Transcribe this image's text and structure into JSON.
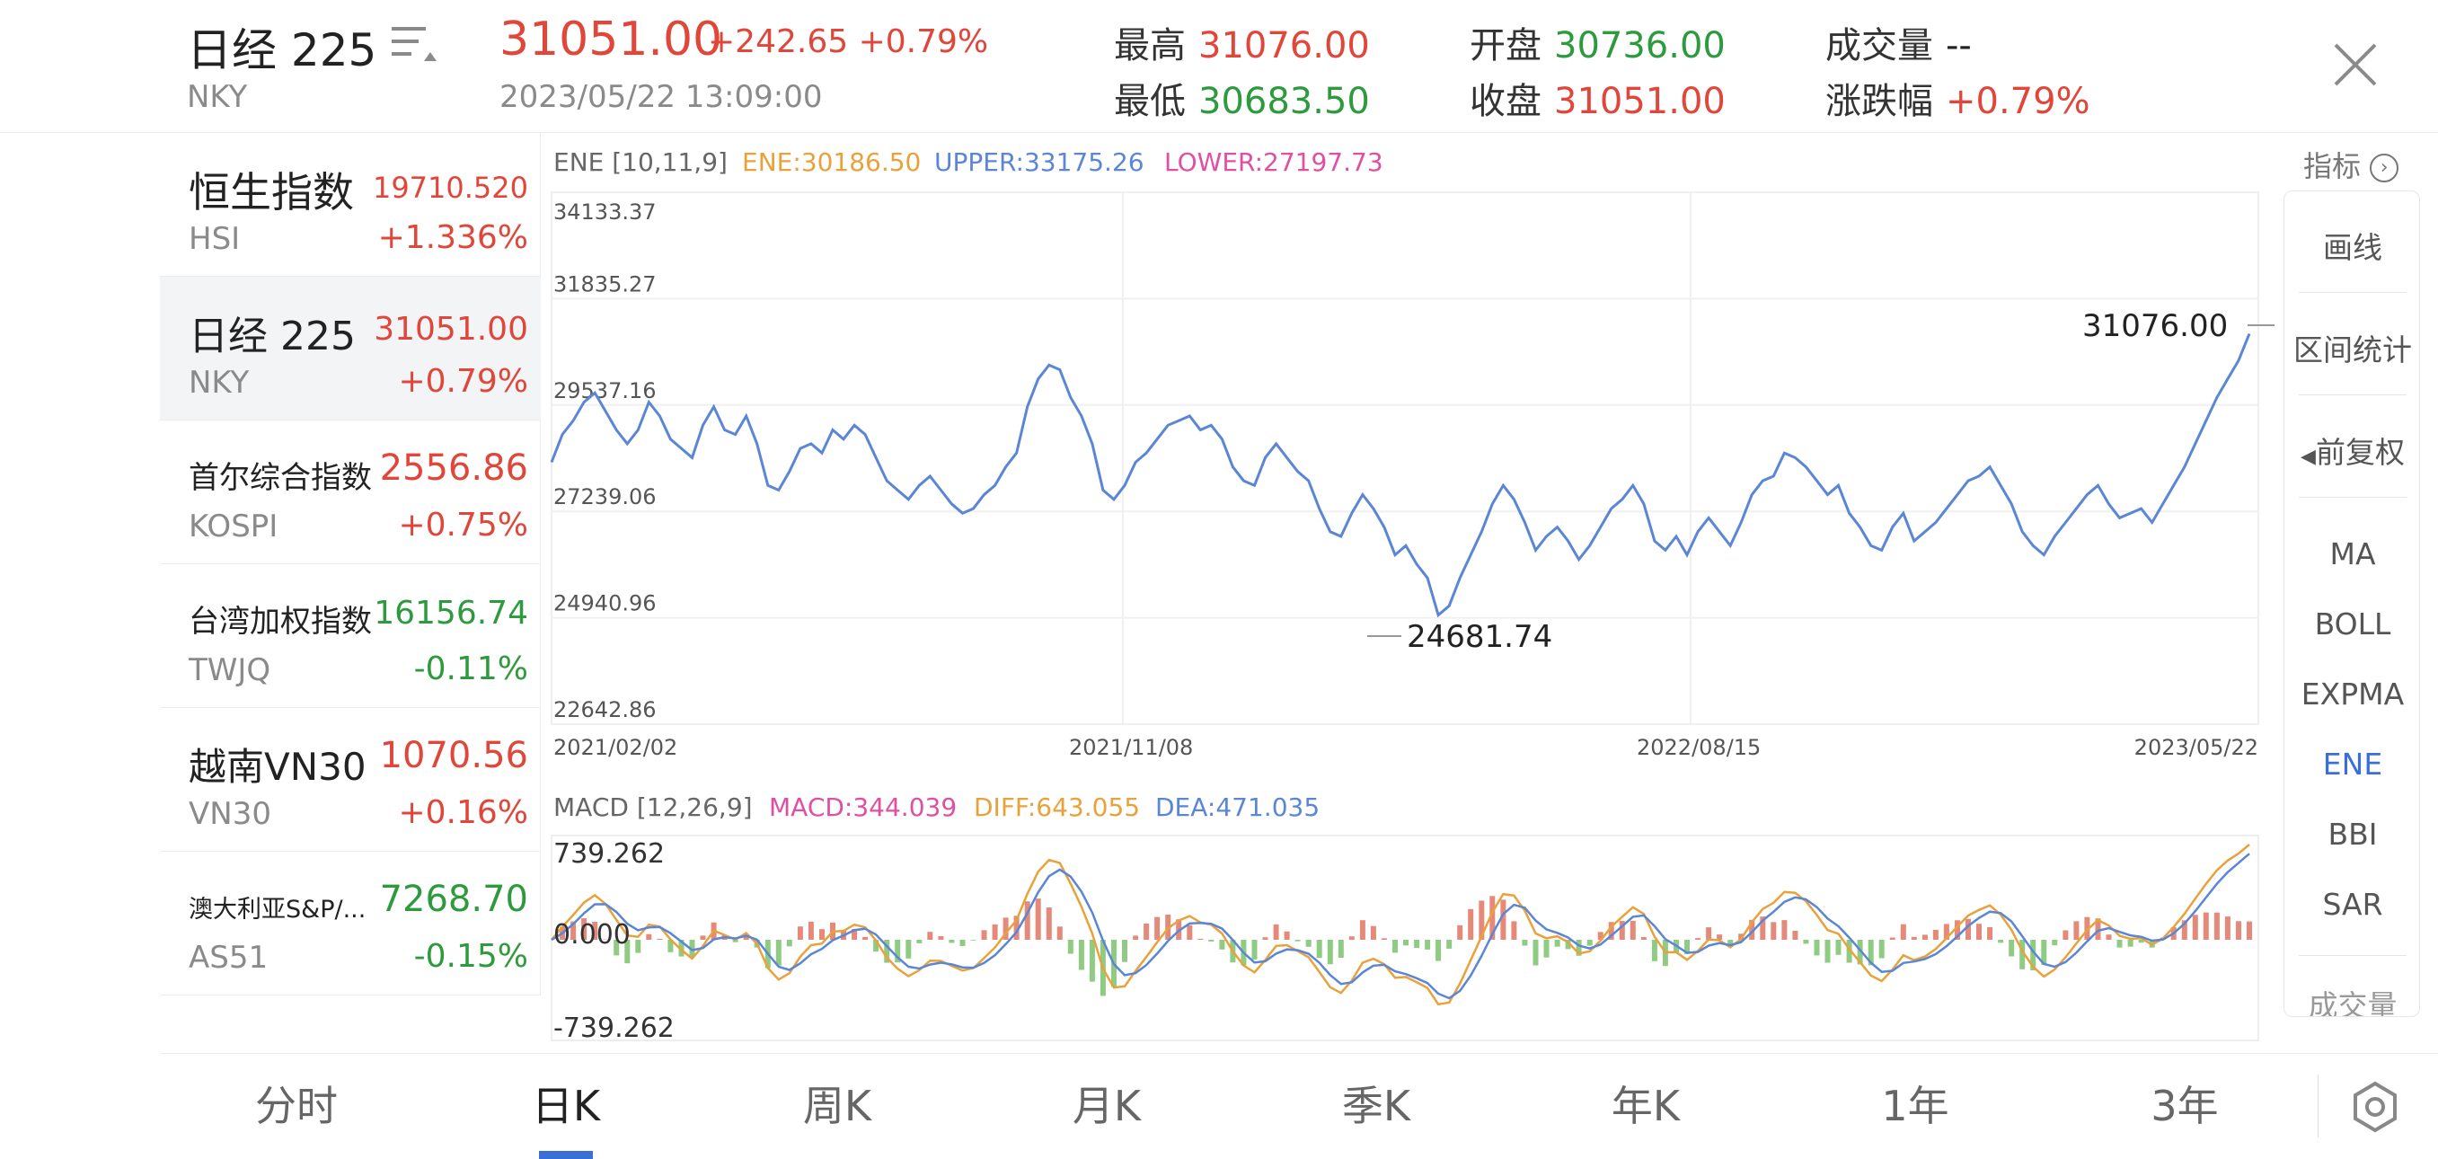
{
  "header": {
    "name": "日经 225",
    "code": "NKY",
    "price": "31051.00",
    "change": "+242.65 +0.79%",
    "datetime": "2023/05/22 13:09:00",
    "stats": [
      {
        "label": "最高",
        "value": "31076.00",
        "color": "red"
      },
      {
        "label": "最低",
        "value": "30683.50",
        "color": "green"
      },
      {
        "label": "开盘",
        "value": "30736.00",
        "color": "green"
      },
      {
        "label": "收盘",
        "value": "31051.00",
        "color": "red"
      },
      {
        "label": "成交量",
        "value": "--",
        "color": "dark"
      },
      {
        "label": "涨跌幅",
        "value": "+0.79%",
        "color": "red"
      }
    ]
  },
  "sidebar": {
    "items": [
      {
        "name": "恒生指数",
        "code": "HSI",
        "price": "19710.520",
        "pct": "+1.336%",
        "color": "red"
      },
      {
        "name": "日经 225",
        "code": "NKY",
        "price": "31051.00",
        "pct": "+0.79%",
        "color": "red"
      },
      {
        "name": "首尔综合指数",
        "code": "KOSPI",
        "price": "2556.86",
        "pct": "+0.75%",
        "color": "red"
      },
      {
        "name": "台湾加权指数",
        "code": "TWJQ",
        "price": "16156.74",
        "pct": "-0.11%",
        "color": "green"
      },
      {
        "name": "越南VN30",
        "code": "VN30",
        "price": "1070.56",
        "pct": "+0.16%",
        "color": "red"
      },
      {
        "name": "澳大利亚S&P/...",
        "code": "AS51",
        "price": "7268.70",
        "pct": "-0.15%",
        "color": "green"
      }
    ]
  },
  "chart": {
    "legend": {
      "title": "ENE [10,11,9]",
      "ene": "ENE:30186.50",
      "upper": "UPPER:33175.26",
      "lower": "LOWER:27197.73"
    },
    "max_label": "31076.00",
    "min_label": "24681.74",
    "macd_legend": {
      "title": "MACD [12,26,9]",
      "macd": "MACD:344.039",
      "diff": "DIFF:643.055",
      "dea": "DEA:471.035"
    }
  },
  "chart_data": {
    "type": "line",
    "y_ticks": [
      "34133.37",
      "31835.27",
      "29537.16",
      "27239.06",
      "24940.96",
      "22642.86"
    ],
    "x_ticks": [
      "2021/02/02",
      "2021/11/08",
      "2022/08/15",
      "2023/05/22"
    ],
    "ylim": [
      22642.86,
      34133.37
    ],
    "series": [
      {
        "values": [
          28300,
          28900,
          29200,
          29600,
          29800,
          29400,
          29000,
          28700,
          29000,
          29600,
          29300,
          28800,
          28600,
          28400,
          29100,
          29500,
          29000,
          28900,
          29300,
          28700,
          27800,
          27700,
          28100,
          28600,
          28700,
          28500,
          29000,
          28800,
          29100,
          28900,
          28400,
          27900,
          27700,
          27500,
          27800,
          28000,
          27700,
          27400,
          27200,
          27300,
          27600,
          27800,
          28200,
          28500,
          29500,
          30100,
          30400,
          30300,
          29700,
          29300,
          28700,
          27700,
          27500,
          27800,
          28300,
          28500,
          28800,
          29100,
          29200,
          29300,
          29000,
          29100,
          28800,
          28200,
          27900,
          27800,
          28400,
          28700,
          28400,
          28100,
          27900,
          27300,
          26800,
          26700,
          27200,
          27600,
          27300,
          26900,
          26300,
          26500,
          26100,
          25800,
          25000,
          25200,
          25800,
          26300,
          26800,
          27400,
          27800,
          27500,
          27000,
          26400,
          26700,
          26900,
          26600,
          26200,
          26500,
          26900,
          27300,
          27500,
          27800,
          27400,
          26600,
          26400,
          26700,
          26300,
          26800,
          27100,
          26800,
          26500,
          27000,
          27600,
          27900,
          28000,
          28500,
          28400,
          28200,
          27900,
          27600,
          27800,
          27200,
          26900,
          26500,
          26400,
          26900,
          27200,
          26600,
          26800,
          27000,
          27300,
          27600,
          27900,
          28000,
          28200,
          27800,
          27400,
          26800,
          26500,
          26300,
          26700,
          27000,
          27300,
          27600,
          27800,
          27400,
          27100,
          27200,
          27300,
          27000,
          27400,
          27800,
          28200,
          28700,
          29200,
          29700,
          30100,
          30500,
          31076
        ]
      }
    ],
    "macd": {
      "ylim": [
        -739.262,
        739.262
      ],
      "y_ticks": [
        "739.262",
        "0.000",
        "-739.262"
      ]
    }
  },
  "right_toolbar": {
    "indicator": "指标",
    "items": [
      "画线",
      "区间统计",
      "前复权",
      "MA",
      "BOLL",
      "EXPMA",
      "ENE",
      "BBI",
      "SAR",
      "成交量"
    ],
    "active": "ENE"
  },
  "tabs": {
    "items": [
      "分时",
      "日K",
      "周K",
      "月K",
      "季K",
      "年K",
      "1年",
      "3年"
    ],
    "active": "日K"
  },
  "colors": {
    "red": "#e0463a",
    "green": "#2e9a3e",
    "blue": "#5b86d6",
    "orange": "#e9a23b",
    "pink": "#e14fa3",
    "accent": "#3a6fd8"
  }
}
